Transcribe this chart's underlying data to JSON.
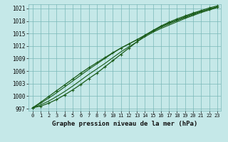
{
  "title": "Graphe pression niveau de la mer (hPa)",
  "background_color": "#c5e8e8",
  "grid_color": "#7ab8b8",
  "line_color": "#1a5c1a",
  "marker_color": "#1a5c1a",
  "xlim": [
    -0.5,
    23.5
  ],
  "ylim": [
    996.5,
    1022.0
  ],
  "xticks": [
    0,
    1,
    2,
    3,
    4,
    5,
    6,
    7,
    8,
    9,
    10,
    11,
    12,
    13,
    14,
    15,
    16,
    17,
    18,
    19,
    20,
    21,
    22,
    23
  ],
  "yticks": [
    997,
    1000,
    1003,
    1006,
    1009,
    1012,
    1015,
    1018,
    1021
  ],
  "series": [
    [
      997.2,
      997.6,
      998.3,
      999.2,
      1000.3,
      1001.5,
      1002.8,
      1004.2,
      1005.5,
      1007.0,
      1008.5,
      1010.0,
      1011.5,
      1013.0,
      1014.5,
      1015.7,
      1016.7,
      1017.5,
      1018.2,
      1019.0,
      1019.7,
      1020.3,
      1020.8,
      1021.3
    ],
    [
      997.2,
      997.9,
      998.8,
      999.9,
      1001.1,
      1002.4,
      1003.8,
      1005.2,
      1006.5,
      1007.8,
      1009.2,
      1010.6,
      1011.8,
      1013.0,
      1014.2,
      1015.3,
      1016.2,
      1017.0,
      1017.8,
      1018.6,
      1019.3,
      1020.0,
      1020.6,
      1021.2
    ],
    [
      997.2,
      998.3,
      999.5,
      1000.8,
      1002.2,
      1003.6,
      1005.0,
      1006.4,
      1007.7,
      1009.0,
      1010.3,
      1011.5,
      1012.5,
      1013.5,
      1014.5,
      1015.5,
      1016.5,
      1017.3,
      1018.1,
      1018.8,
      1019.5,
      1020.2,
      1020.8,
      1021.4
    ],
    [
      997.2,
      998.5,
      999.9,
      1001.3,
      1002.7,
      1004.1,
      1005.5,
      1006.8,
      1008.0,
      1009.2,
      1010.4,
      1011.5,
      1012.5,
      1013.5,
      1014.6,
      1015.7,
      1016.8,
      1017.7,
      1018.5,
      1019.2,
      1019.9,
      1020.5,
      1021.1,
      1021.6
    ]
  ]
}
